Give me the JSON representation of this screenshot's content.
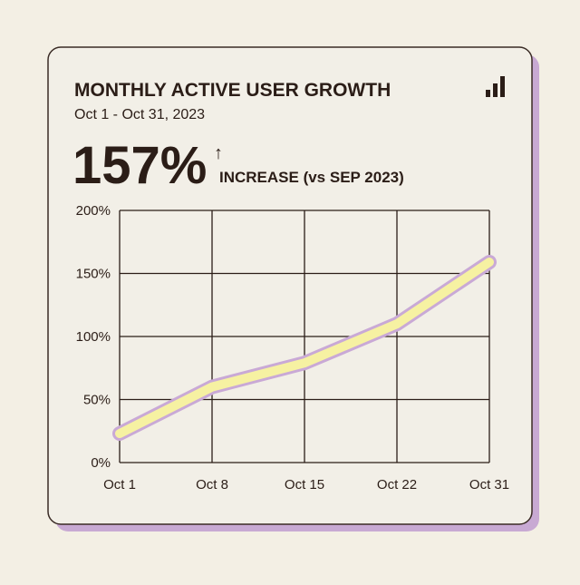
{
  "chart_data": {
    "type": "line",
    "title": "MONTHLY ACTIVE USER GROWTH",
    "subtitle": "Oct 1 - Oct 31, 2023",
    "headline": "157%",
    "headline_arrow": "↑",
    "headline_note": "INCREASE (vs SEP 2023)",
    "categories": [
      "Oct 1",
      "Oct 8",
      "Oct 15",
      "Oct 22",
      "Oct 31"
    ],
    "series": [
      {
        "name": "Monthly active users",
        "color": "#f6f1a2",
        "outline_color": "#c9a9d6",
        "values": [
          23,
          60,
          79,
          110,
          159
        ]
      }
    ],
    "ylim": [
      0,
      200
    ],
    "yticks": [
      {
        "value": 0,
        "label": "0%"
      },
      {
        "value": 50,
        "label": "50%"
      },
      {
        "value": 100,
        "label": "100%"
      },
      {
        "value": 150,
        "label": "150%"
      },
      {
        "value": 200,
        "label": "200%"
      }
    ],
    "grid": true
  }
}
